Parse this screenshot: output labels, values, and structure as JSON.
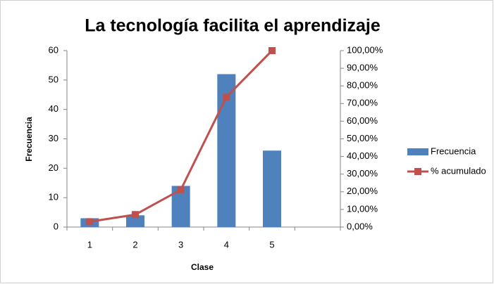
{
  "chart_data": {
    "type": "pareto",
    "title": "La tecnología facilita el aprendizaje",
    "x_label": "Clase",
    "y_label": "Frecuencia",
    "categories": [
      "1",
      "2",
      "3",
      "4",
      "5",
      null
    ],
    "series": [
      {
        "name": "Frecuencia",
        "type": "bar",
        "color": "#4f81bd",
        "values": [
          3,
          4,
          14,
          52,
          26,
          null
        ]
      },
      {
        "name": "% acumulado",
        "type": "line",
        "axis": "y2",
        "color": "#c0504d",
        "values": [
          3.03,
          7.07,
          21.21,
          73.74,
          100,
          null
        ]
      }
    ],
    "ylim": [
      0,
      60
    ],
    "yticks": [
      0,
      10,
      20,
      30,
      40,
      50,
      60
    ],
    "y2lim": [
      0,
      100
    ],
    "y2ticks": [
      {
        "value": 0,
        "label": "0,00%"
      },
      {
        "value": 10,
        "label": "10,00%"
      },
      {
        "value": 20,
        "label": "20,00%"
      },
      {
        "value": 30,
        "label": "30,00%"
      },
      {
        "value": 40,
        "label": "40,00%"
      },
      {
        "value": 50,
        "label": "50,00%"
      },
      {
        "value": 60,
        "label": "60,00%"
      },
      {
        "value": 70,
        "label": "70,00%"
      },
      {
        "value": 80,
        "label": "80,00%"
      },
      {
        "value": 90,
        "label": "90,00%"
      },
      {
        "value": 100,
        "label": "100,00%"
      }
    ],
    "legend": "right",
    "grid": false
  }
}
